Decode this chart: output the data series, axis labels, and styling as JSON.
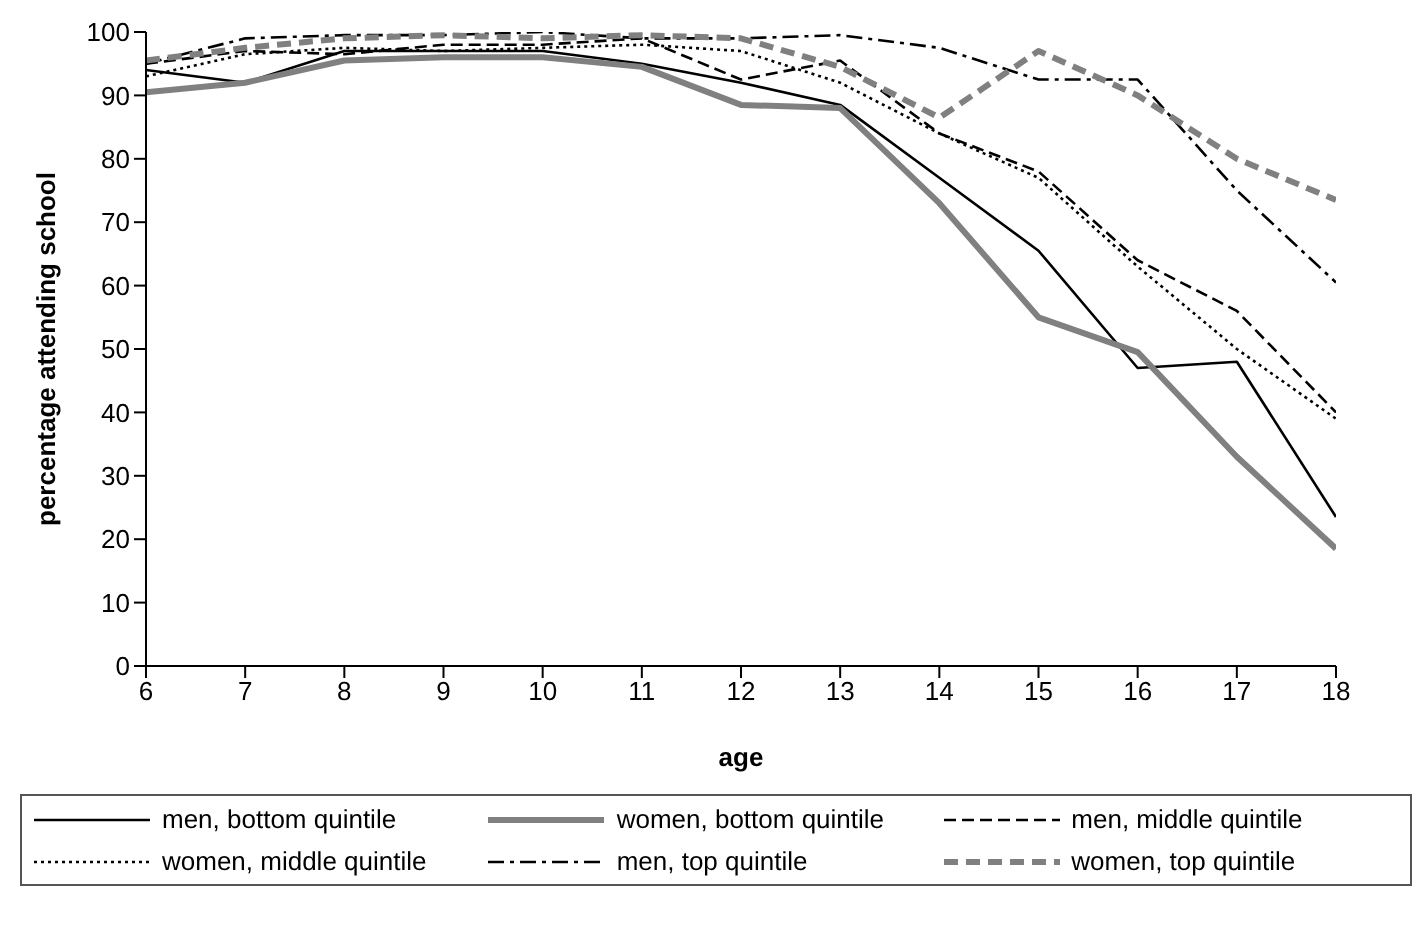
{
  "chart_data": {
    "type": "line",
    "xlabel": "age",
    "ylabel": "percentage attending school",
    "x": [
      6,
      7,
      8,
      9,
      10,
      11,
      12,
      13,
      14,
      15,
      16,
      17,
      18
    ],
    "xlim": [
      6,
      18
    ],
    "xticks": [
      6,
      7,
      8,
      9,
      10,
      11,
      12,
      13,
      14,
      15,
      16,
      17,
      18
    ],
    "ylim": [
      0,
      100
    ],
    "yticks": [
      0,
      10,
      20,
      30,
      40,
      50,
      60,
      70,
      80,
      90,
      100
    ],
    "grid": false,
    "legend": "bottom",
    "marker": "none",
    "series": [
      {
        "name": "men, bottom quintile",
        "color": "#000000",
        "line_style": "solid",
        "values": [
          94,
          92,
          97,
          97,
          97,
          95,
          92,
          88.5,
          77,
          65.5,
          47,
          48,
          23.5
        ]
      },
      {
        "name": "women, bottom quintile",
        "color": "#808080",
        "line_style": "solid",
        "values": [
          90.5,
          92,
          95.5,
          96,
          96,
          94.5,
          88.5,
          88,
          73,
          55,
          49.5,
          33,
          18.5
        ]
      },
      {
        "name": "men, middle quintile",
        "color": "#000000",
        "line_style": "dashed",
        "values": [
          95,
          97,
          96.5,
          98,
          98,
          99,
          92.5,
          95.5,
          84,
          78,
          64,
          56,
          40
        ]
      },
      {
        "name": "women, middle quintile",
        "color": "#000000",
        "line_style": "dotted",
        "values": [
          93,
          96.5,
          97.5,
          97,
          97.5,
          98,
          97,
          92,
          84,
          77,
          63,
          50,
          39
        ]
      },
      {
        "name": "men, top quintile",
        "color": "#000000",
        "line_style": "dashdot",
        "values": [
          95,
          99,
          99.5,
          99.5,
          100,
          99,
          99,
          99.5,
          97.5,
          92.5,
          92.5,
          75,
          60.5
        ]
      },
      {
        "name": "women, top quintile",
        "color": "#808080",
        "line_style": "dashed",
        "values": [
          95.5,
          97.5,
          99,
          99.5,
          99,
          99.5,
          99,
          94.5,
          86.5,
          97,
          90,
          80,
          73.5
        ]
      }
    ]
  }
}
